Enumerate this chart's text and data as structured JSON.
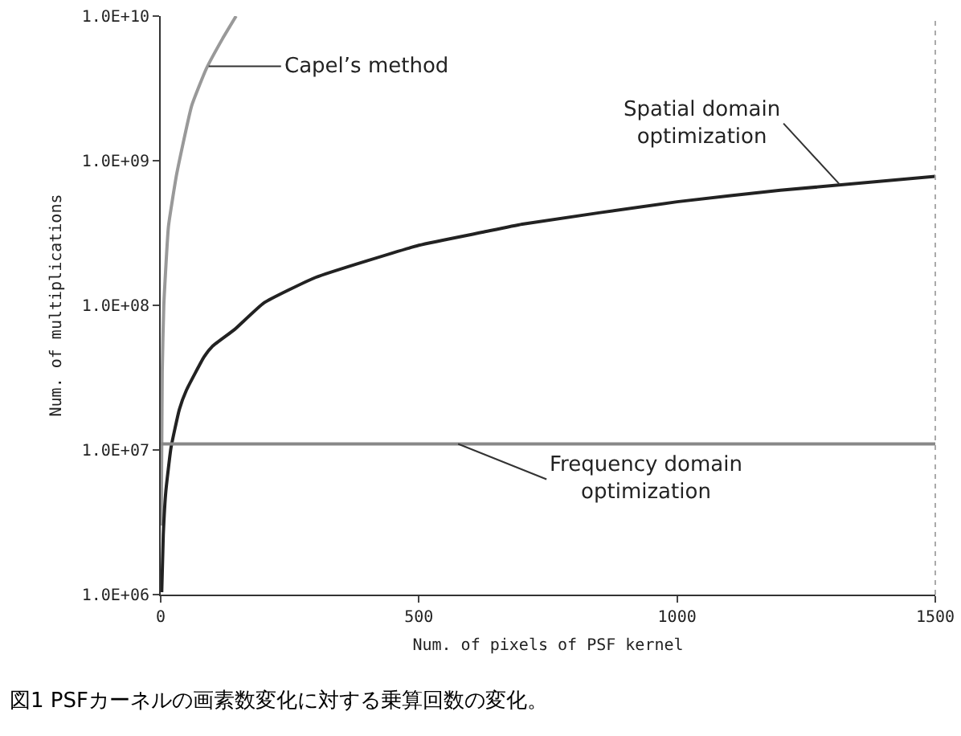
{
  "chart_data": {
    "type": "line",
    "xlabel": "Num. of pixels of PSF kernel",
    "ylabel": "Num. of multiplications",
    "log": "y",
    "xlim": [
      0,
      1500
    ],
    "xticks": [
      0,
      500,
      1000,
      1500
    ],
    "ylim": [
      1000000,
      10000000000
    ],
    "yticks": [
      {
        "value": 1000000,
        "label": "1.0E+06"
      },
      {
        "value": 10000000,
        "label": "1.0E+07"
      },
      {
        "value": 100000000,
        "label": "1.0E+08"
      },
      {
        "value": 1000000000,
        "label": "1.0E+09"
      },
      {
        "value": 10000000000,
        "label": "1.0E+10"
      }
    ],
    "grid": false,
    "marker": "none",
    "line_style": "solid",
    "series": [
      {
        "color": "#999999",
        "x": [
          1,
          3,
          6,
          15,
          31,
          60,
          88,
          120,
          146
        ],
        "values": [
          3000000,
          35000000,
          100000000,
          350000000,
          810000000,
          2400000000,
          4300000000,
          7000000000,
          10000000000
        ]
      },
      {
        "color": "#222222",
        "x": [
          2,
          5,
          10,
          20,
          36,
          50,
          84,
          100,
          143,
          200,
          300,
          500,
          623,
          700,
          1000,
          1200,
          1500
        ],
        "values": [
          1040000,
          2600000,
          5200000,
          10400000,
          19000000,
          26000000,
          44000000,
          52000000,
          68000000,
          104000000,
          156000000,
          260000000,
          320000000,
          364000000,
          520000000,
          624000000,
          780000000
        ]
      },
      {
        "color": "#888888",
        "x": [
          1,
          1500
        ],
        "values": [
          11000000,
          11000000
        ]
      }
    ],
    "annotations": [
      {
        "text": "Capel’s method",
        "x": 93,
        "y": 4500000000
      },
      {
        "text": "Spatial domain\noptimization",
        "x": 1315,
        "y": 684000000
      },
      {
        "text": "Frequency domain\noptimization",
        "x": 576,
        "y": 11000000
      },
      "図1 PSFカーネルの画素数変化に対する乗算回数の変化。"
    ]
  }
}
